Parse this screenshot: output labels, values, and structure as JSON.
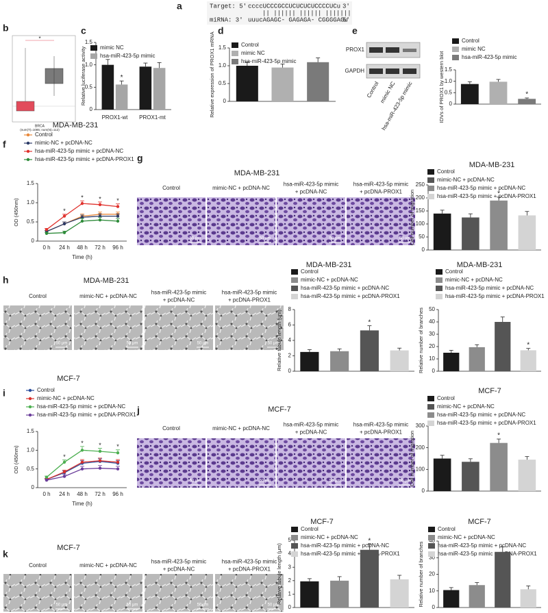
{
  "panel_labels": [
    "a",
    "b",
    "c",
    "d",
    "e",
    "f",
    "g",
    "h",
    "i",
    "j",
    "k"
  ],
  "sequence": {
    "target_label": "Target: 5'",
    "target": "ccccUCCCGCCUCUCUCUCCCCUCu",
    "target_end": "3'",
    "pairs": "||  |||||| |||||| |||||||",
    "mirna_label": "miRNA: 3'",
    "mirna": "uuucAGAGC- GAGAGA- CGGGGAGu",
    "mirna_end": "5'"
  },
  "expression_plot": {
    "star": "*",
    "dataset": "BRCA",
    "counts": "(num(T)=1085; num(N)=112)"
  },
  "blot": {
    "bands": [
      "PROX1",
      "GAPDH"
    ],
    "lanes": [
      "Control",
      "mimic NC",
      "hsa-miR-423-5p mimic"
    ]
  },
  "micrographs": [
    {
      "title": "MDA-MB-231",
      "columns": [
        [
          "Control"
        ],
        [
          "mimic-NC + pcDNA-NC"
        ],
        [
          "hsa-miR-423-5p mimic",
          "+ pcDNA-NC"
        ],
        [
          "hsa-miR-423-5p mimic",
          "+ pcDNA-PROX1"
        ]
      ],
      "scale": "50 μm"
    },
    {
      "title": "MDA-MB-231",
      "columns": [
        [
          "Control"
        ],
        [
          "mimic-NC + pcDNA-NC"
        ],
        [
          "hsa-miR-423-5p mimic",
          "+ pcDNA-NC"
        ],
        [
          "hsa-miR-423-5p mimic",
          "+ pcDNA-PROX1"
        ]
      ],
      "scale": "50 μm"
    },
    {
      "title": "MCF-7",
      "columns": [
        [
          "Control"
        ],
        [
          "mimic-NC + pcDNA-NC"
        ],
        [
          "hsa-miR-423-5p mimic",
          "+ pcDNA-NC"
        ],
        [
          "hsa-miR-423-5p mimic",
          "+ pcDNA-PROX1"
        ]
      ],
      "scale": "50 μm"
    },
    {
      "title": "MCF-7",
      "columns": [
        [
          "Control"
        ],
        [
          "mimic-NC + pcDNA-NC"
        ],
        [
          "hsa-miR-423-5p mimic",
          "+ pcDNA-NC"
        ],
        [
          "hsa-miR-423-5p mimic",
          "+ pcDNA-PROX1"
        ]
      ],
      "scale": "50 μm"
    }
  ],
  "chart_data": [
    {
      "type": "bar",
      "ylabel": "Relative luciferase activity",
      "categories": [
        "PROX1-wt",
        "PROX1-mt"
      ],
      "ylim": [
        0,
        1.5
      ],
      "yticks": [
        0,
        0.5,
        {
          "value": 1,
          "label": "1.0"
        },
        1.5
      ],
      "series": [
        {
          "name": "mimic NC",
          "color": "#1a1a1a",
          "values": [
            1.0,
            0.96
          ],
          "errors": [
            0.12,
            0.08
          ]
        },
        {
          "name": "hsa-miR-423-5p mimic",
          "color": "#a6a6a6",
          "values": [
            0.56,
            0.93
          ],
          "errors": [
            0.08,
            0.12
          ],
          "annotations": [
            "*",
            null
          ]
        }
      ]
    },
    {
      "type": "bar",
      "ylabel": "Relative expression of PROX1 mRNA",
      "categories": [
        null
      ],
      "ylim": [
        0,
        1.5
      ],
      "yticks": [
        0,
        0.5,
        {
          "value": 1,
          "label": "1.0"
        },
        1.5
      ],
      "series": [
        {
          "name": "Control",
          "color": "#1a1a1a",
          "values": [
            1.0
          ],
          "errors": [
            0.1
          ]
        },
        {
          "name": "mimic NC",
          "color": "#b0b0b0",
          "values": [
            0.95
          ],
          "errors": [
            0.1
          ]
        },
        {
          "name": "hsa-miR-423-5p mimic",
          "color": "#7a7a7a",
          "values": [
            1.1
          ],
          "errors": [
            0.12
          ]
        }
      ]
    },
    {
      "type": "bar",
      "ylabel": "IDVs of PROX1 by western blot",
      "categories": [
        null
      ],
      "ylim": [
        0,
        1.5
      ],
      "yticks": [
        0,
        0.5,
        {
          "value": 1,
          "label": "1.0"
        },
        1.5
      ],
      "series": [
        {
          "name": "Control",
          "color": "#1a1a1a",
          "values": [
            0.88
          ],
          "errors": [
            0.1
          ]
        },
        {
          "name": "mimic NC",
          "color": "#b0b0b0",
          "values": [
            0.98
          ],
          "errors": [
            0.1
          ]
        },
        {
          "name": "hsa-miR-423-5p mimic",
          "color": "#7a7a7a",
          "values": [
            0.23
          ],
          "errors": [
            0.04
          ],
          "annotations": [
            "*"
          ]
        }
      ]
    },
    {
      "type": "line",
      "title": "MDA-MB-231",
      "ylabel": "OD (450nm)",
      "xlabel": "Time (h)",
      "categories": [
        "0 h",
        "24 h",
        "48 h",
        "72 h",
        "96 h"
      ],
      "ylim": [
        0,
        1.5
      ],
      "yticks": [
        0,
        0.5,
        {
          "value": 1,
          "label": "1.0"
        },
        1.5
      ],
      "series": [
        {
          "name": "Control",
          "color": "#e8883a",
          "values": [
            0.25,
            0.45,
            0.65,
            0.7,
            0.7
          ],
          "errors": [
            0.03,
            0.05,
            0.06,
            0.06,
            0.06
          ]
        },
        {
          "name": "mimic-NC + pcDNA-NC",
          "color": "#2b3a67",
          "values": [
            0.25,
            0.45,
            0.62,
            0.65,
            0.65
          ],
          "errors": [
            0.03,
            0.05,
            0.06,
            0.06,
            0.06
          ]
        },
        {
          "name": "hsa-miR-423-5p mimic + pcDNA-NC",
          "color": "#e0322d",
          "values": [
            0.3,
            0.65,
            0.98,
            0.95,
            0.9
          ],
          "errors": [
            0.03,
            0.05,
            0.07,
            0.07,
            0.07
          ],
          "annotations": [
            null,
            "*",
            "*",
            "*",
            "*"
          ]
        },
        {
          "name": "hsa-miR-423-5p mimic + pcDNA-PROX1",
          "color": "#2e8b3a",
          "values": [
            0.2,
            0.22,
            0.52,
            0.55,
            0.52
          ],
          "errors": [
            0.03,
            0.04,
            0.07,
            0.07,
            0.07
          ]
        }
      ]
    },
    {
      "type": "bar",
      "title": "MDA-MB-231",
      "ylabel": "Cell number of migration",
      "categories": [
        null
      ],
      "ylim": [
        0,
        250
      ],
      "yticks": [
        0,
        50,
        100,
        150,
        200,
        250
      ],
      "series": [
        {
          "name": "Control",
          "color": "#1a1a1a",
          "values": [
            140
          ],
          "errors": [
            13
          ]
        },
        {
          "name": "mimic-NC + pcDNA-NC",
          "color": "#555555",
          "values": [
            125
          ],
          "errors": [
            14
          ]
        },
        {
          "name": "hsa-miR-423-5p mimic + pcDNA-NC",
          "color": "#8c8c8c",
          "values": [
            190
          ],
          "errors": [
            13
          ],
          "annotations": [
            "*"
          ]
        },
        {
          "name": "hsa-miR-423-5p mimic + pcDNA-PROX1",
          "color": "#d4d4d4",
          "values": [
            133
          ],
          "errors": [
            15
          ]
        }
      ]
    },
    {
      "type": "bar",
      "title": "MDA-MB-231",
      "ylabel": "Relative tubule length (μm)",
      "categories": [
        null
      ],
      "ylim": [
        0,
        8
      ],
      "yticks": [
        0,
        2,
        4,
        6,
        8
      ],
      "series": [
        {
          "name": "Control",
          "color": "#1a1a1a",
          "values": [
            2.5
          ],
          "errors": [
            0.3
          ]
        },
        {
          "name": "mimic-NC + pcDNA-NC",
          "color": "#8c8c8c",
          "values": [
            2.6
          ],
          "errors": [
            0.3
          ]
        },
        {
          "name": "hsa-miR-423-5p mimic + pcDNA-NC",
          "color": "#555555",
          "values": [
            5.3
          ],
          "errors": [
            0.6
          ],
          "annotations": [
            "*"
          ]
        },
        {
          "name": "hsa-miR-423-5p mimic + pcDNA-PROX1",
          "color": "#d4d4d4",
          "values": [
            2.7
          ],
          "errors": [
            0.3
          ]
        }
      ]
    },
    {
      "type": "bar",
      "title": "MDA-MB-231",
      "ylabel": "Relative number of branches",
      "categories": [
        null
      ],
      "ylim": [
        0,
        50
      ],
      "yticks": [
        0,
        10,
        20,
        30,
        40,
        50
      ],
      "series": [
        {
          "name": "Control",
          "color": "#1a1a1a",
          "values": [
            15
          ],
          "errors": [
            2
          ]
        },
        {
          "name": "mimic-NC + pcDNA-NC",
          "color": "#8c8c8c",
          "values": [
            19.5
          ],
          "errors": [
            2
          ]
        },
        {
          "name": "hsa-miR-423-5p mimic + pcDNA-NC",
          "color": "#555555",
          "values": [
            40
          ],
          "errors": [
            4
          ]
        },
        {
          "name": "hsa-miR-423-5p mimic + pcDNA-PROX1",
          "color": "#d4d4d4",
          "values": [
            17
          ],
          "errors": [
            1.5
          ],
          "annotations": [
            "*"
          ]
        }
      ]
    },
    {
      "type": "line",
      "title": "MCF-7",
      "ylabel": "OD (450nm)",
      "xlabel": "Time (h)",
      "categories": [
        "0 h",
        "24 h",
        "48 h",
        "72 h",
        "96 h"
      ],
      "ylim": [
        0,
        1.5
      ],
      "yticks": [
        0,
        0.5,
        {
          "value": 1,
          "label": "1.0"
        },
        1.5
      ],
      "series": [
        {
          "name": "Control",
          "color": "#2a4d9c",
          "values": [
            0.22,
            0.4,
            0.65,
            0.7,
            0.65
          ],
          "errors": [
            0.03,
            0.05,
            0.07,
            0.07,
            0.07
          ]
        },
        {
          "name": "mimic-NC + pcDNA-NC",
          "color": "#d9302c",
          "values": [
            0.22,
            0.42,
            0.68,
            0.72,
            0.68
          ],
          "errors": [
            0.03,
            0.05,
            0.07,
            0.07,
            0.07
          ]
        },
        {
          "name": "hsa-miR-423-5p mimic + pcDNA-NC",
          "color": "#4caf50",
          "values": [
            0.28,
            0.68,
            1.0,
            0.97,
            0.93
          ],
          "errors": [
            0.03,
            0.06,
            0.1,
            0.08,
            0.08
          ],
          "annotations": [
            null,
            "*",
            "*",
            "*",
            "*"
          ]
        },
        {
          "name": "hsa-miR-423-5p mimic + pcDNA-PROX1",
          "color": "#6a3d9a",
          "values": [
            0.2,
            0.3,
            0.5,
            0.52,
            0.5
          ],
          "errors": [
            0.03,
            0.05,
            0.07,
            0.07,
            0.07
          ]
        }
      ]
    },
    {
      "type": "bar",
      "title": "MCF-7",
      "ylabel": "Cell number of migration",
      "categories": [
        null
      ],
      "ylim": [
        0,
        300
      ],
      "yticks": [
        0,
        100,
        200,
        300
      ],
      "series": [
        {
          "name": "Control",
          "color": "#1a1a1a",
          "values": [
            150
          ],
          "errors": [
            15
          ]
        },
        {
          "name": "mimic-NC + pcDNA-NC",
          "color": "#555555",
          "values": [
            135
          ],
          "errors": [
            14
          ]
        },
        {
          "name": "hsa-miR-423-5p mimic + pcDNA-NC",
          "color": "#8c8c8c",
          "values": [
            222
          ],
          "errors": [
            18
          ],
          "annotations": [
            "*"
          ]
        },
        {
          "name": "hsa-miR-423-5p mimic + pcDNA-PROX1",
          "color": "#d4d4d4",
          "values": [
            145
          ],
          "errors": [
            14
          ]
        }
      ]
    },
    {
      "type": "bar",
      "title": "MCF-7",
      "ylabel": "Relative tubule length (μm)",
      "categories": [
        null
      ],
      "ylim": [
        0,
        5
      ],
      "yticks": [
        0,
        1,
        2,
        3,
        4,
        5
      ],
      "series": [
        {
          "name": "Control",
          "color": "#1a1a1a",
          "values": [
            1.95
          ],
          "errors": [
            0.2
          ]
        },
        {
          "name": "mimic-NC + pcDNA-NC",
          "color": "#8c8c8c",
          "values": [
            2.0
          ],
          "errors": [
            0.3
          ]
        },
        {
          "name": "hsa-miR-423-5p mimic + pcDNA-NC",
          "color": "#555555",
          "values": [
            4.3
          ],
          "errors": [
            0.4
          ],
          "annotations": [
            "*"
          ]
        },
        {
          "name": "hsa-miR-423-5p mimic + pcDNA-PROX1",
          "color": "#d4d4d4",
          "values": [
            2.1
          ],
          "errors": [
            0.3
          ]
        }
      ]
    },
    {
      "type": "bar",
      "title": "MCF-7",
      "ylabel": "Relative number of branches",
      "categories": [
        null
      ],
      "ylim": [
        0,
        40
      ],
      "yticks": [
        0,
        10,
        20,
        30,
        40
      ],
      "series": [
        {
          "name": "Control",
          "color": "#1a1a1a",
          "values": [
            10.5
          ],
          "errors": [
            1.5
          ]
        },
        {
          "name": "mimic-NC + pcDNA-NC",
          "color": "#8c8c8c",
          "values": [
            13.5
          ],
          "errors": [
            1.5
          ]
        },
        {
          "name": "hsa-miR-423-5p mimic + pcDNA-NC",
          "color": "#555555",
          "values": [
            33.5
          ],
          "errors": [
            3
          ]
        },
        {
          "name": "hsa-miR-423-5p mimic + pcDNA-PROX1",
          "color": "#d4d4d4",
          "values": [
            11
          ],
          "errors": [
            2
          ]
        }
      ]
    }
  ]
}
